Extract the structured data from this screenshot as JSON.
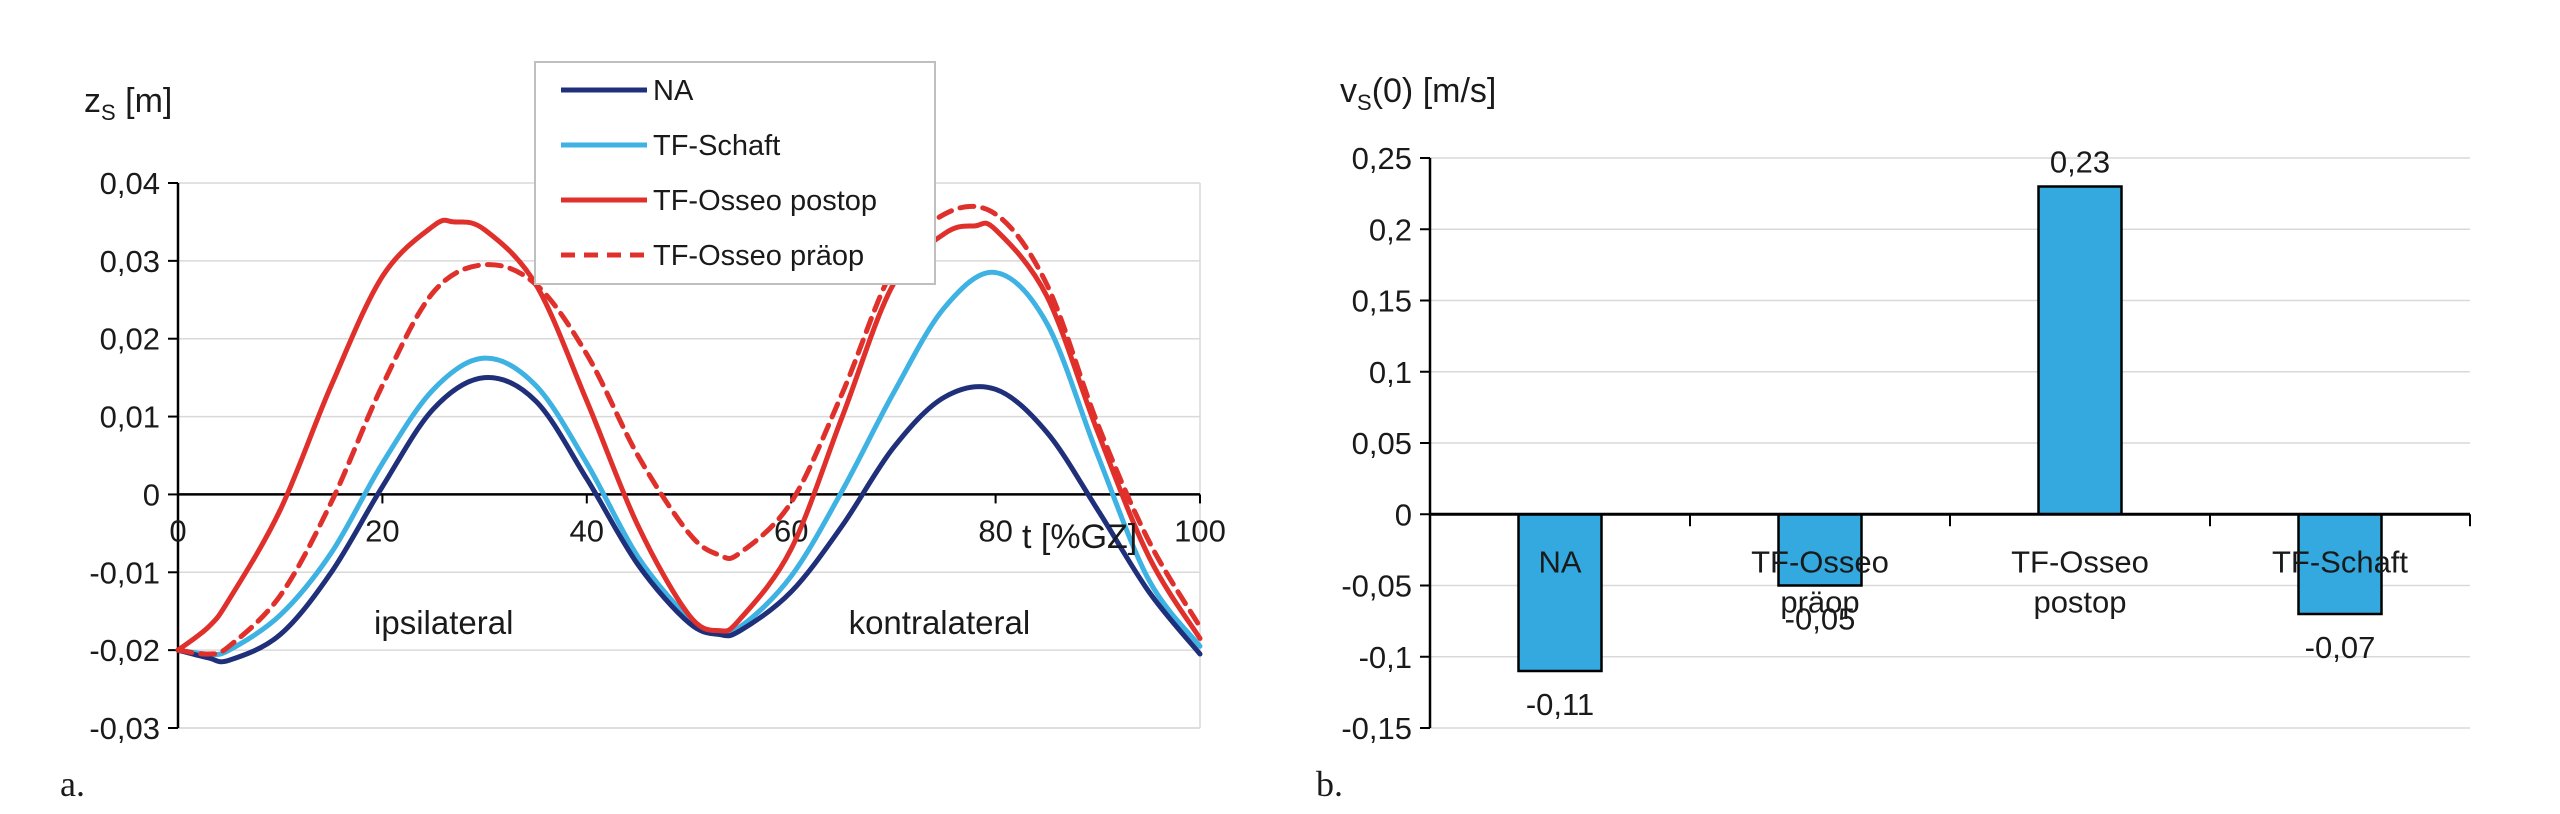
{
  "chart_data": [
    {
      "type": "line",
      "panel_label": "a.",
      "ylabel_main": "z",
      "ylabel_sub": "S",
      "ylabel_unit": " [m]",
      "xlabel": "t [%GZ]",
      "xlim": [
        0,
        100
      ],
      "ylim": [
        -0.03,
        0.04
      ],
      "xticks": [
        0,
        20,
        40,
        60,
        80,
        100
      ],
      "xtick_labels": [
        "0",
        "20",
        "40",
        "60",
        "80",
        "100"
      ],
      "yticks": [
        -0.03,
        -0.02,
        -0.01,
        0,
        0.01,
        0.02,
        0.03,
        0.04
      ],
      "ytick_labels": [
        "-0,03",
        "-0,02",
        "-0,01",
        "0",
        "0,01",
        "0,02",
        "0,03",
        "0,04"
      ],
      "grid": true,
      "legend_position": "top-center",
      "annotations": [
        {
          "text": "ipsilateral",
          "x": 26,
          "y": -0.0165
        },
        {
          "text": "kontralateral",
          "x": 74.5,
          "y": -0.0165
        }
      ],
      "series": [
        {
          "name": "NA",
          "color": "#1f2f7a",
          "dash": false,
          "x": [
            0,
            3,
            5,
            10,
            15,
            20,
            25,
            30,
            35,
            40,
            45,
            50,
            53,
            55,
            60,
            65,
            70,
            75,
            80,
            85,
            90,
            95,
            100
          ],
          "y": [
            -0.02,
            -0.021,
            -0.0213,
            -0.018,
            -0.01,
            0.001,
            0.011,
            0.015,
            0.012,
            0.002,
            -0.009,
            -0.0165,
            -0.018,
            -0.0175,
            -0.0125,
            -0.004,
            0.006,
            0.0125,
            0.0135,
            0.008,
            -0.002,
            -0.0125,
            -0.0205
          ]
        },
        {
          "name": "TF-Schaft",
          "color": "#3db2e3",
          "dash": false,
          "x": [
            0,
            3,
            5,
            10,
            15,
            20,
            25,
            30,
            35,
            40,
            45,
            50,
            52,
            55,
            60,
            65,
            70,
            75,
            80,
            85,
            90,
            95,
            100
          ],
          "y": [
            -0.02,
            -0.0205,
            -0.02,
            -0.0155,
            -0.0075,
            0.004,
            0.0135,
            0.0175,
            0.014,
            0.004,
            -0.008,
            -0.016,
            -0.0178,
            -0.017,
            -0.0105,
            0.0005,
            0.013,
            0.024,
            0.0285,
            0.022,
            0.005,
            -0.011,
            -0.0195
          ]
        },
        {
          "name": "TF-Osseo postop",
          "color": "#e0302b",
          "dash": false,
          "x": [
            0,
            3,
            5,
            10,
            15,
            20,
            25,
            27,
            30,
            35,
            40,
            45,
            50,
            53,
            55,
            60,
            65,
            70,
            75,
            78,
            80,
            85,
            90,
            95,
            100
          ],
          "y": [
            -0.02,
            -0.017,
            -0.0135,
            -0.002,
            0.014,
            0.028,
            0.0345,
            0.035,
            0.034,
            0.027,
            0.012,
            -0.004,
            -0.0155,
            -0.0175,
            -0.016,
            -0.007,
            0.01,
            0.027,
            0.0335,
            0.0345,
            0.034,
            0.0255,
            0.008,
            -0.008,
            -0.0185
          ]
        },
        {
          "name": "TF-Osseo präop",
          "color": "#e0302b",
          "dash": true,
          "x": [
            0,
            3,
            5,
            10,
            15,
            20,
            25,
            30,
            35,
            40,
            45,
            50,
            53,
            55,
            60,
            65,
            70,
            75,
            80,
            85,
            90,
            95,
            100
          ],
          "y": [
            -0.02,
            -0.0205,
            -0.0195,
            -0.013,
            -0.001,
            0.014,
            0.026,
            0.0295,
            0.027,
            0.018,
            0.005,
            -0.005,
            -0.0078,
            -0.0075,
            -0.001,
            0.013,
            0.029,
            0.036,
            0.036,
            0.027,
            0.009,
            -0.006,
            -0.017
          ]
        }
      ]
    },
    {
      "type": "bar",
      "panel_label": "b.",
      "ylabel_main": "v",
      "ylabel_sub": "S",
      "ylabel_unit": "(0) [m/s]",
      "ylim": [
        -0.15,
        0.25
      ],
      "yticks": [
        -0.15,
        -0.1,
        -0.05,
        0,
        0.05,
        0.1,
        0.15,
        0.2,
        0.25
      ],
      "ytick_labels": [
        "-0,15",
        "-0,1",
        "-0,05",
        "0",
        "0,05",
        "0,1",
        "0,15",
        "0,2",
        "0,25"
      ],
      "grid": true,
      "bar_color": "#33a9e0",
      "categories": [
        [
          "NA"
        ],
        [
          "TF-Osseo",
          "präop"
        ],
        [
          "TF-Osseo",
          "postop"
        ],
        [
          "TF-Schaft"
        ]
      ],
      "values": [
        -0.11,
        -0.05,
        0.23,
        -0.07
      ],
      "value_labels": [
        "-0,11",
        "-0,05",
        "0,23",
        "-0,07"
      ]
    }
  ]
}
